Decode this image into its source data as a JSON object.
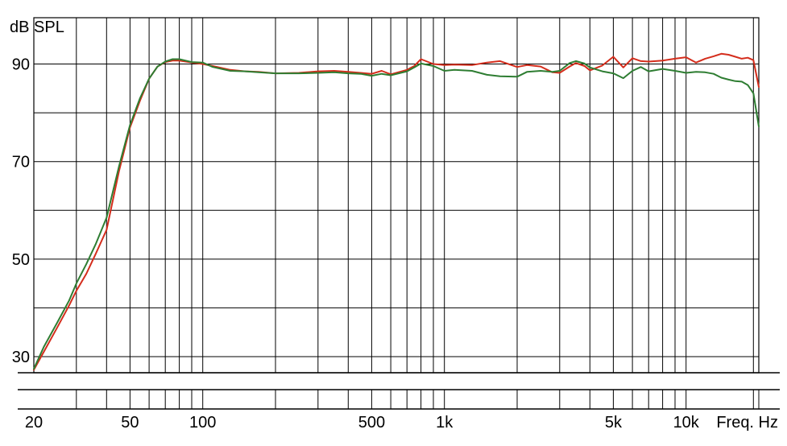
{
  "chart_data": {
    "type": "line",
    "title": "",
    "ylabel": "dB SPL",
    "xlabel": "Freq. Hz",
    "x_scale": "log",
    "xlim": [
      20,
      20000
    ],
    "ylim": [
      26.7,
      99.5
    ],
    "grid": true,
    "legend": "none",
    "y_ticks": [
      30,
      50,
      70,
      90
    ],
    "y_gridlines": [
      30,
      40,
      50,
      60,
      70,
      80,
      90
    ],
    "x_tick_labels": [
      {
        "value": 20,
        "label": "20"
      },
      {
        "value": 50,
        "label": "50"
      },
      {
        "value": 100,
        "label": "100"
      },
      {
        "value": 500,
        "label": "500"
      },
      {
        "value": 1000,
        "label": "1k"
      },
      {
        "value": 5000,
        "label": "5k"
      },
      {
        "value": 10000,
        "label": "10k"
      }
    ],
    "x_gridlines": [
      30,
      40,
      50,
      60,
      70,
      80,
      90,
      100,
      200,
      300,
      400,
      500,
      600,
      700,
      800,
      900,
      1000,
      2000,
      3000,
      4000,
      5000,
      6000,
      7000,
      8000,
      9000,
      10000,
      19000,
      20000
    ],
    "series": [
      {
        "color": "#d42d1c",
        "x": [
          20,
          22,
          25,
          28,
          30,
          33,
          36,
          40,
          45,
          50,
          55,
          60,
          65,
          70,
          75,
          80,
          85,
          90,
          100,
          110,
          130,
          150,
          170,
          200,
          250,
          300,
          350,
          400,
          450,
          500,
          550,
          600,
          700,
          750,
          800,
          900,
          1000,
          1100,
          1300,
          1500,
          1700,
          2000,
          2200,
          2500,
          2800,
          3000,
          3300,
          3500,
          3800,
          4000,
          4500,
          5000,
          5500,
          6000,
          6500,
          7000,
          8000,
          9000,
          10000,
          11000,
          12000,
          13000,
          14000,
          15000,
          16000,
          17000,
          18000,
          19000,
          20000
        ],
        "y": [
          27.3,
          31,
          36,
          40.5,
          43.5,
          47,
          51,
          56,
          68,
          77,
          82.5,
          87,
          89.5,
          90.4,
          90.7,
          90.7,
          90.5,
          90.3,
          90,
          89.6,
          88.8,
          88.5,
          88.4,
          88.1,
          88.2,
          88.5,
          88.6,
          88.4,
          88.2,
          88,
          88.6,
          87.9,
          88.8,
          89.6,
          91,
          90,
          89.8,
          89.9,
          89.8,
          90.3,
          90.6,
          89.4,
          89.8,
          89.5,
          88.3,
          88.2,
          89.5,
          90.2,
          89.6,
          88.7,
          89.7,
          91.5,
          89.3,
          91.2,
          90.6,
          90.5,
          90.7,
          91.1,
          91.4,
          90.3,
          91.1,
          91.6,
          92.1,
          91.9,
          91.5,
          91.1,
          91.3,
          90.8,
          85.3
        ]
      },
      {
        "color": "#2e7d32",
        "x": [
          20,
          22,
          25,
          28,
          30,
          33,
          36,
          40,
          45,
          50,
          55,
          60,
          65,
          70,
          75,
          80,
          85,
          90,
          100,
          110,
          130,
          150,
          170,
          200,
          250,
          300,
          350,
          400,
          450,
          500,
          550,
          600,
          700,
          750,
          800,
          900,
          1000,
          1100,
          1300,
          1500,
          1700,
          2000,
          2200,
          2500,
          2800,
          3000,
          3300,
          3500,
          3800,
          4000,
          4500,
          5000,
          5500,
          6000,
          6500,
          7000,
          8000,
          9000,
          10000,
          11000,
          12000,
          13000,
          14000,
          15000,
          16000,
          17000,
          18000,
          19000,
          20000
        ],
        "y": [
          27.5,
          32,
          37,
          41.5,
          45,
          49,
          53,
          58.5,
          69,
          77.5,
          83,
          87,
          89.5,
          90.5,
          91,
          91,
          90.7,
          90.4,
          90.3,
          89.4,
          88.6,
          88.5,
          88.3,
          88.1,
          88.1,
          88.2,
          88.3,
          88.1,
          88,
          87.6,
          88,
          87.7,
          88.5,
          89.3,
          90.1,
          89.6,
          88.6,
          88.8,
          88.6,
          87.8,
          87.5,
          87.4,
          88.4,
          88.6,
          88.4,
          88.6,
          90.2,
          90.6,
          90.1,
          89.3,
          88.5,
          88.1,
          87.1,
          88.6,
          89.4,
          88.5,
          89,
          88.6,
          88.2,
          88.4,
          88.3,
          88,
          87.2,
          86.8,
          86.5,
          86.4,
          85.7,
          84,
          77.2
        ]
      }
    ]
  }
}
